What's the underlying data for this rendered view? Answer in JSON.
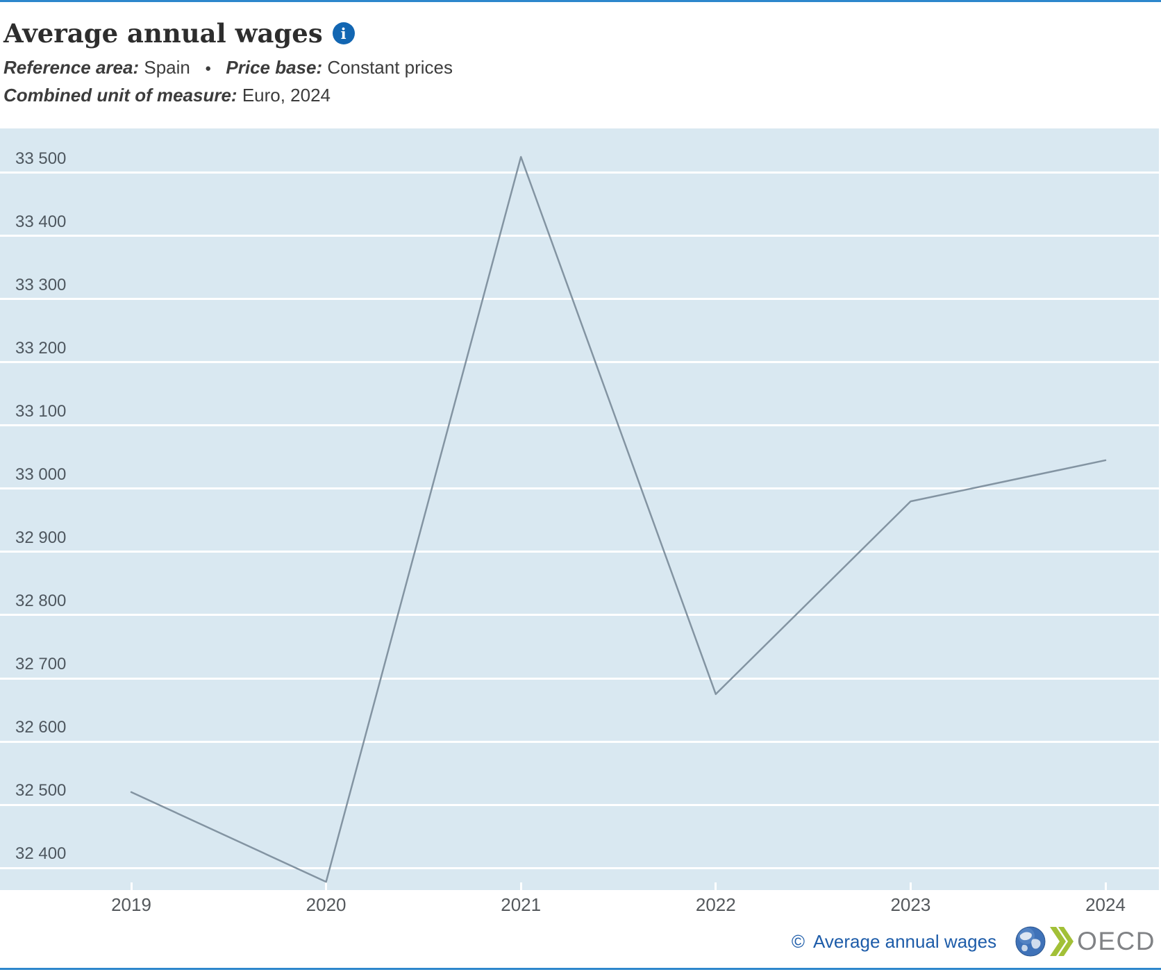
{
  "page": {
    "title": "Average annual wages",
    "info_icon": "i",
    "subtitle": {
      "ref_label": "Reference area:",
      "ref_value": "Spain",
      "separator": "●",
      "price_label": "Price base:",
      "price_value": "Constant prices",
      "unit_label": "Combined unit of measure:",
      "unit_value": "Euro, 2024"
    }
  },
  "footer": {
    "copyright": "©",
    "source_label": "Average annual wages",
    "logo_text": "OECD"
  },
  "colors": {
    "accent_blue": "#2d87cc",
    "plot_background": "#d9e8f1",
    "gridline": "#ffffff",
    "series_line": "#8394a2",
    "info_icon_blue": "#1266b2",
    "footer_blue": "#1d5ca9",
    "logo_gray": "#808285",
    "logo_green": "#a2c037",
    "globe_blue": "#3f72b8",
    "tick_label": "#4e575f"
  },
  "chart_data": {
    "type": "line",
    "title": "Average annual wages",
    "xlabel": "",
    "ylabel": "",
    "x": [
      2019,
      2020,
      2021,
      2022,
      2023,
      2024
    ],
    "xtick_labels": [
      "2019",
      "2020",
      "2021",
      "2022",
      "2023",
      "2024"
    ],
    "series": [
      {
        "name": "Average annual wages (Spain, constant prices, Euro 2024)",
        "values": [
          32520,
          32378,
          33525,
          32675,
          32980,
          33045
        ]
      }
    ],
    "ylim": [
      32365,
      33570
    ],
    "yticks": [
      33500,
      33400,
      33300,
      33200,
      33100,
      33000,
      32900,
      32800,
      32700,
      32600,
      32500,
      32400
    ],
    "ytick_labels": [
      "33 500",
      "33 400",
      "33 300",
      "33 200",
      "33 100",
      "33 000",
      "32 900",
      "32 800",
      "32 700",
      "32 600",
      "32 500",
      "32 400"
    ],
    "grid": "horizontal-only, white gridlines on light blue plot background",
    "legend": "none"
  }
}
